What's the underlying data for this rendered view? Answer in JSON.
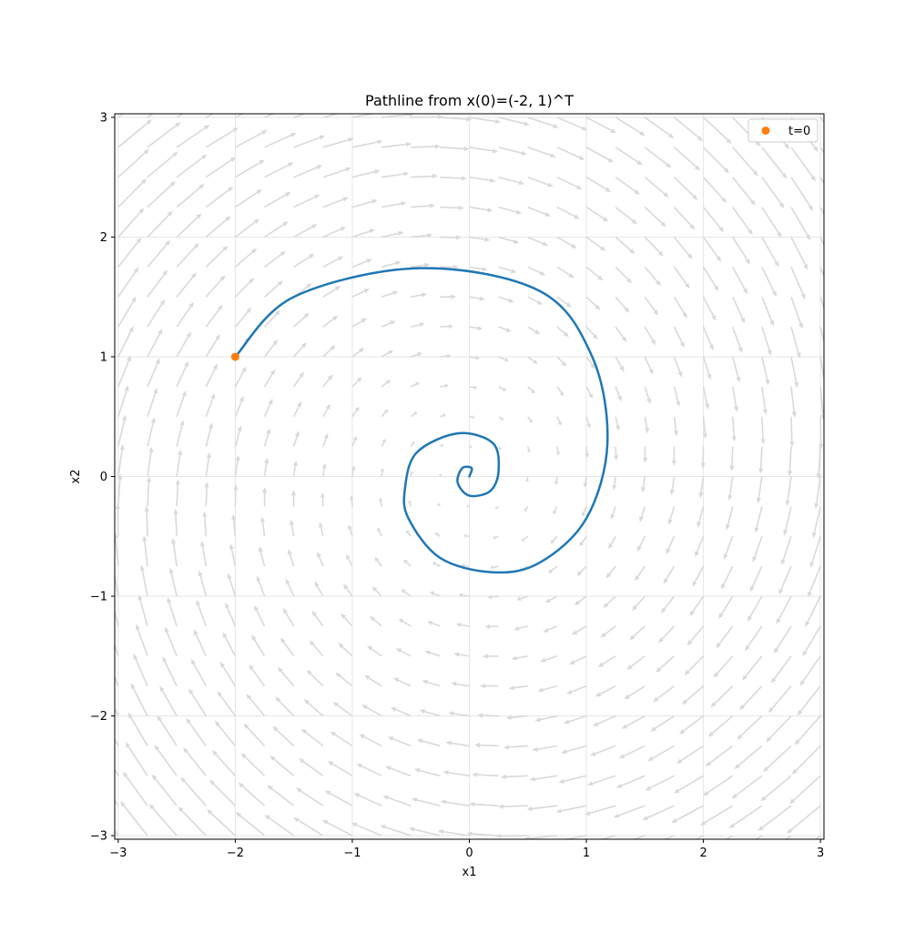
{
  "chart_data": {
    "type": "line",
    "title": "Pathline from x(0)=(-2, 1)^T",
    "xlabel": "x1",
    "ylabel": "x2",
    "xlim": [
      -3.03,
      3.03
    ],
    "ylim": [
      -3.03,
      3.03
    ],
    "xticks": [
      -3,
      -2,
      -1,
      0,
      1,
      2,
      3
    ],
    "yticks": [
      -3,
      -2,
      -1,
      0,
      1,
      2,
      3
    ],
    "xtick_labels": [
      "−3",
      "−2",
      "−1",
      "0",
      "1",
      "2",
      "3"
    ],
    "ytick_labels": [
      "−3",
      "−2",
      "−1",
      "0",
      "1",
      "2",
      "3"
    ],
    "grid": true,
    "legend_position": "top-right",
    "vector_field": {
      "type": "quiver",
      "color": "#d9d9d9",
      "grid_range": [
        -3,
        3
      ],
      "grid_count": 25,
      "field": "spiral (-0.15*x1 + x2, -x1 - 0.15*x2)"
    },
    "series": [
      {
        "kind": "line",
        "color": "#1f77b4",
        "start": [
          -2,
          1
        ],
        "turns": 4.5,
        "points": [
          [
            -2.0,
            1.0
          ],
          [
            -1.5,
            1.5
          ],
          [
            -0.43,
            1.74
          ],
          [
            0.6,
            1.55
          ],
          [
            1.05,
            1.0
          ],
          [
            1.18,
            0.28
          ],
          [
            1.0,
            -0.35
          ],
          [
            0.6,
            -0.72
          ],
          [
            0.2,
            -0.8
          ],
          [
            -0.25,
            -0.68
          ],
          [
            -0.52,
            -0.35
          ],
          [
            -0.55,
            -0.1
          ],
          [
            -0.45,
            0.2
          ],
          [
            -0.1,
            0.36
          ],
          [
            0.2,
            0.28
          ],
          [
            0.25,
            0.05
          ],
          [
            0.18,
            -0.12
          ],
          [
            0.0,
            -0.16
          ],
          [
            -0.1,
            -0.05
          ],
          [
            -0.06,
            0.07
          ],
          [
            0.02,
            0.07
          ],
          [
            0.0,
            0.0
          ]
        ]
      },
      {
        "kind": "marker",
        "name": "t=0",
        "color": "#ff7f0e",
        "x": [
          -2
        ],
        "y": [
          1
        ]
      }
    ]
  }
}
